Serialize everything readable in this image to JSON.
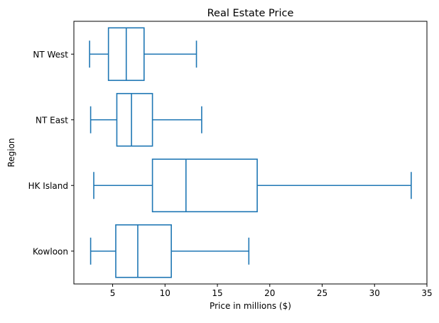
{
  "chart_data": {
    "type": "boxplot",
    "orientation": "horizontal",
    "title": "Real Estate Price",
    "xlabel": "Price in millions ($)",
    "ylabel": "Region",
    "xlim": [
      1.3,
      35
    ],
    "xticks": [
      5,
      10,
      15,
      20,
      25,
      30,
      35
    ],
    "grid": false,
    "box_color": "#1f77b4",
    "categories": [
      "NT West",
      "NT East",
      "HK Island",
      "Kowloon"
    ],
    "boxes": [
      {
        "label": "NT West",
        "whisker_low": 2.8,
        "q1": 4.6,
        "median": 6.3,
        "q3": 8.0,
        "whisker_high": 13.0
      },
      {
        "label": "NT East",
        "whisker_low": 2.9,
        "q1": 5.4,
        "median": 6.8,
        "q3": 8.8,
        "whisker_high": 13.5
      },
      {
        "label": "HK Island",
        "whisker_low": 3.2,
        "q1": 8.8,
        "median": 12.0,
        "q3": 18.8,
        "whisker_high": 33.5
      },
      {
        "label": "Kowloon",
        "whisker_low": 2.9,
        "q1": 5.3,
        "median": 7.4,
        "q3": 10.6,
        "whisker_high": 18.0
      }
    ]
  }
}
